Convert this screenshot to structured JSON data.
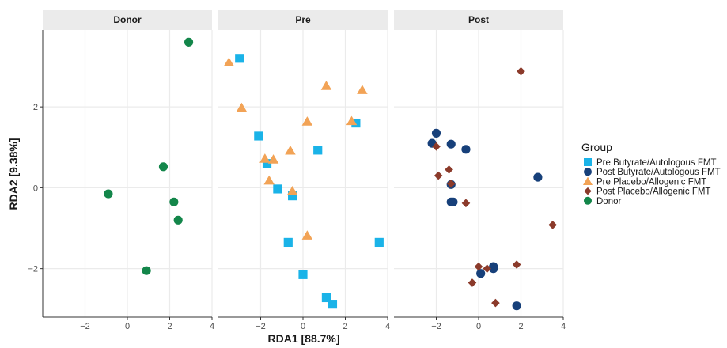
{
  "chart_data": {
    "type": "scatter",
    "xlabel": "RDA1 [88.7%]",
    "ylabel": "RDA2 [9.38%]",
    "xlim": [
      -4,
      4
    ],
    "ylim": [
      -3.2,
      3.9
    ],
    "x_ticks": [
      -2,
      0,
      2,
      4
    ],
    "y_ticks": [
      -2,
      0,
      2
    ],
    "facets": [
      "Donor",
      "Pre",
      "Post"
    ],
    "grid": true,
    "legend": {
      "title": "Group",
      "position": "right",
      "entries": [
        {
          "label": "Pre Butyrate/Autologous FMT",
          "color": "#1ab3e8",
          "shape": "square"
        },
        {
          "label": "Post Butyrate/Autologous FMT",
          "color": "#17407a",
          "shape": "circle"
        },
        {
          "label": "Pre Placebo/Allogenic FMT",
          "color": "#f2a356",
          "shape": "triangle"
        },
        {
          "label": "Post Placebo/Allogenic FMT",
          "color": "#8b3a2a",
          "shape": "diamond"
        },
        {
          "label": "Donor",
          "color": "#13864a",
          "shape": "circle"
        }
      ]
    },
    "series": [
      {
        "facet": "Donor",
        "group": 4,
        "points": [
          [
            2.9,
            3.6
          ],
          [
            1.7,
            0.52
          ],
          [
            -0.9,
            -0.15
          ],
          [
            2.2,
            -0.35
          ],
          [
            2.4,
            -0.8
          ],
          [
            0.9,
            -2.05
          ]
        ]
      },
      {
        "facet": "Pre",
        "group": 0,
        "points": [
          [
            -3.0,
            3.2
          ],
          [
            -2.1,
            1.28
          ],
          [
            -1.7,
            0.6
          ],
          [
            -1.2,
            -0.03
          ],
          [
            -0.5,
            -0.2
          ],
          [
            0.7,
            0.93
          ],
          [
            2.5,
            1.6
          ],
          [
            -0.7,
            -1.35
          ],
          [
            0.0,
            -2.15
          ],
          [
            1.1,
            -2.72
          ],
          [
            1.4,
            -2.88
          ],
          [
            3.6,
            -1.35
          ]
        ]
      },
      {
        "facet": "Pre",
        "group": 2,
        "points": [
          [
            -3.5,
            3.1
          ],
          [
            -2.9,
            1.98
          ],
          [
            1.1,
            2.52
          ],
          [
            2.8,
            2.42
          ],
          [
            0.2,
            1.64
          ],
          [
            2.3,
            1.65
          ],
          [
            -0.6,
            0.92
          ],
          [
            -1.8,
            0.72
          ],
          [
            -1.4,
            0.7
          ],
          [
            -1.6,
            0.18
          ],
          [
            -0.5,
            -0.08
          ],
          [
            0.2,
            -1.18
          ]
        ]
      },
      {
        "facet": "Post",
        "group": 1,
        "points": [
          [
            -2.2,
            1.1
          ],
          [
            -2.0,
            1.35
          ],
          [
            -1.3,
            1.08
          ],
          [
            -0.6,
            0.95
          ],
          [
            -1.3,
            0.08
          ],
          [
            -1.3,
            -0.35
          ],
          [
            -1.2,
            -0.35
          ],
          [
            2.8,
            0.26
          ],
          [
            0.1,
            -2.12
          ],
          [
            0.7,
            -1.95
          ],
          [
            0.7,
            -2.0
          ],
          [
            1.8,
            -2.92
          ]
        ]
      },
      {
        "facet": "Post",
        "group": 3,
        "points": [
          [
            2.0,
            2.88
          ],
          [
            -2.0,
            1.02
          ],
          [
            -1.4,
            0.45
          ],
          [
            -1.9,
            0.3
          ],
          [
            -1.3,
            0.1
          ],
          [
            -0.6,
            -0.38
          ],
          [
            3.5,
            -0.92
          ],
          [
            0.0,
            -1.95
          ],
          [
            0.4,
            -2.0
          ],
          [
            1.8,
            -1.9
          ],
          [
            -0.3,
            -2.35
          ],
          [
            0.8,
            -2.85
          ]
        ]
      }
    ]
  }
}
